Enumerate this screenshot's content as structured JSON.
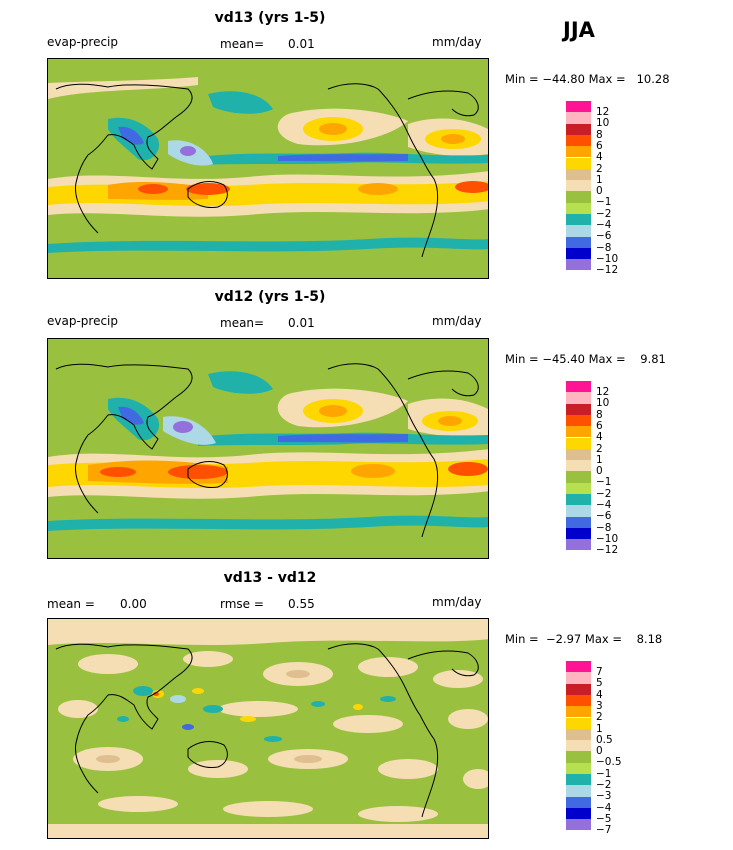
{
  "season": "JJA",
  "panels": [
    {
      "title": "vd13 (yrs 1-5)",
      "left_label": "evap-precip",
      "mid_label": "mean=",
      "mid_value": "0.01",
      "units": "mm/day",
      "min_max": "Min = −44.80 Max =   10.28",
      "legend_labels": [
        "12",
        "10",
        "8",
        "6",
        "4",
        "2",
        "1",
        "0",
        "−1",
        "−2",
        "−4",
        "−6",
        "−8",
        "−10",
        "−12"
      ]
    },
    {
      "title": "vd12 (yrs 1-5)",
      "left_label": "evap-precip",
      "mid_label": "mean=",
      "mid_value": "0.01",
      "units": "mm/day",
      "min_max": "Min = −45.40 Max =    9.81",
      "legend_labels": [
        "12",
        "10",
        "8",
        "6",
        "4",
        "2",
        "1",
        "0",
        "−1",
        "−2",
        "−4",
        "−6",
        "−8",
        "−10",
        "−12"
      ]
    },
    {
      "title": "vd13 - vd12",
      "left_label": "mean =",
      "left_value": "0.00",
      "mid_label": "rmse =",
      "mid_value": "0.55",
      "units": "mm/day",
      "min_max": "Min =  −2.97 Max =    8.18",
      "legend_labels": [
        "7",
        "5",
        "4",
        "3",
        "2",
        "1",
        "0.5",
        "0",
        "−0.5",
        "−1",
        "−2",
        "−3",
        "−4",
        "−5",
        "−7"
      ]
    }
  ],
  "colors": {
    "scale": [
      "#ff1493",
      "#ffb6c1",
      "#c81e28",
      "#ff5000",
      "#ffa500",
      "#ffd700",
      "#dfbf90",
      "#f5deb3",
      "#99c13f",
      "#b6e04f",
      "#20b2aa",
      "#add8e6",
      "#4169e1",
      "#0000cd",
      "#9370db"
    ],
    "land_outline": "#000000"
  }
}
